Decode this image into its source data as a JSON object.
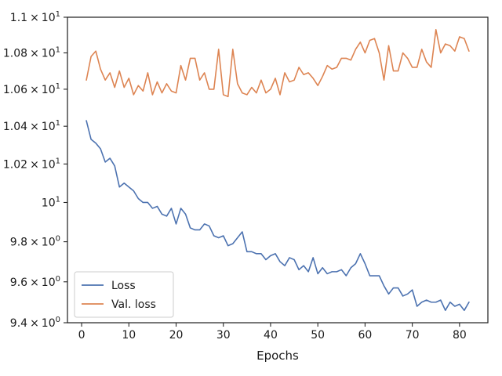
{
  "chart_data": {
    "type": "line",
    "title": "",
    "xlabel": "Epochs",
    "ylabel": "",
    "xlim": [
      -3,
      86
    ],
    "ylim": [
      9.4,
      11.0
    ],
    "y_scale": "log",
    "grid": false,
    "legend_position": "lower-left",
    "x_ticks": [
      0,
      10,
      20,
      30,
      40,
      50,
      60,
      70,
      80
    ],
    "x_tick_labels": [
      "0",
      "10",
      "20",
      "30",
      "40",
      "50",
      "60",
      "70",
      "80"
    ],
    "y_ticks": [
      {
        "value": 9.4,
        "mantissa": "9.4",
        "times": "×",
        "base": "10",
        "exp": "0"
      },
      {
        "value": 9.6,
        "mantissa": "9.6",
        "times": "×",
        "base": "10",
        "exp": "0"
      },
      {
        "value": 9.8,
        "mantissa": "9.8",
        "times": "×",
        "base": "10",
        "exp": "0"
      },
      {
        "value": 10.0,
        "mantissa": "",
        "times": "",
        "base": "10",
        "exp": "1"
      },
      {
        "value": 10.2,
        "mantissa": "1.02",
        "times": "×",
        "base": "10",
        "exp": "1"
      },
      {
        "value": 10.4,
        "mantissa": "1.04",
        "times": "×",
        "base": "10",
        "exp": "1"
      },
      {
        "value": 10.6,
        "mantissa": "1.06",
        "times": "×",
        "base": "10",
        "exp": "1"
      },
      {
        "value": 10.8,
        "mantissa": "1.08",
        "times": "×",
        "base": "10",
        "exp": "1"
      },
      {
        "value": 11.0,
        "mantissa": "1.1",
        "times": "×",
        "base": "10",
        "exp": "1"
      }
    ],
    "x": [
      1,
      2,
      3,
      4,
      5,
      6,
      7,
      8,
      9,
      10,
      11,
      12,
      13,
      14,
      15,
      16,
      17,
      18,
      19,
      20,
      21,
      22,
      23,
      24,
      25,
      26,
      27,
      28,
      29,
      30,
      31,
      32,
      33,
      34,
      35,
      36,
      37,
      38,
      39,
      40,
      41,
      42,
      43,
      44,
      45,
      46,
      47,
      48,
      49,
      50,
      51,
      52,
      53,
      54,
      55,
      56,
      57,
      58,
      59,
      60,
      61,
      62,
      63,
      64,
      65,
      66,
      67,
      68,
      69,
      70,
      71,
      72,
      73,
      74,
      75,
      76,
      77,
      78,
      79,
      80,
      81,
      82
    ],
    "series": [
      {
        "name": "Loss",
        "color": "#4c72b0",
        "values": [
          10.43,
          10.33,
          10.31,
          10.28,
          10.21,
          10.23,
          10.19,
          10.08,
          10.1,
          10.08,
          10.06,
          10.02,
          10.0,
          10.0,
          9.97,
          9.98,
          9.94,
          9.93,
          9.97,
          9.89,
          9.97,
          9.94,
          9.87,
          9.86,
          9.86,
          9.89,
          9.88,
          9.83,
          9.82,
          9.83,
          9.78,
          9.79,
          9.82,
          9.85,
          9.75,
          9.75,
          9.74,
          9.74,
          9.71,
          9.73,
          9.74,
          9.7,
          9.68,
          9.72,
          9.71,
          9.66,
          9.68,
          9.65,
          9.72,
          9.64,
          9.67,
          9.64,
          9.65,
          9.65,
          9.66,
          9.63,
          9.67,
          9.69,
          9.74,
          9.69,
          9.63,
          9.63,
          9.63,
          9.58,
          9.54,
          9.57,
          9.57,
          9.53,
          9.54,
          9.56,
          9.48,
          9.5,
          9.51,
          9.5,
          9.5,
          9.51,
          9.46,
          9.5,
          9.48,
          9.49,
          9.46,
          9.5
        ]
      },
      {
        "name": "Val. loss",
        "color": "#dd8452",
        "values": [
          10.65,
          10.78,
          10.81,
          10.71,
          10.65,
          10.69,
          10.61,
          10.7,
          10.61,
          10.66,
          10.57,
          10.62,
          10.59,
          10.69,
          10.57,
          10.64,
          10.58,
          10.63,
          10.59,
          10.58,
          10.73,
          10.65,
          10.77,
          10.77,
          10.65,
          10.69,
          10.6,
          10.6,
          10.82,
          10.57,
          10.56,
          10.82,
          10.63,
          10.58,
          10.57,
          10.61,
          10.58,
          10.65,
          10.58,
          10.6,
          10.66,
          10.57,
          10.69,
          10.64,
          10.65,
          10.72,
          10.68,
          10.69,
          10.66,
          10.62,
          10.67,
          10.73,
          10.71,
          10.72,
          10.77,
          10.77,
          10.76,
          10.82,
          10.86,
          10.8,
          10.87,
          10.88,
          10.8,
          10.65,
          10.84,
          10.7,
          10.7,
          10.8,
          10.77,
          10.72,
          10.72,
          10.82,
          10.75,
          10.72,
          10.93,
          10.8,
          10.85,
          10.84,
          10.81,
          10.89,
          10.88,
          10.81
        ]
      }
    ]
  }
}
